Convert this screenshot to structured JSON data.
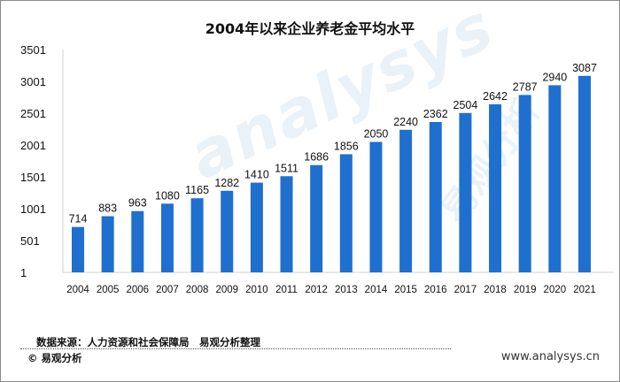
{
  "chart_data": {
    "type": "bar",
    "title": "2004年以来企业养老金平均水平",
    "categories": [
      "2004",
      "2005",
      "2006",
      "2007",
      "2008",
      "2009",
      "2010",
      "2011",
      "2012",
      "2013",
      "2014",
      "2015",
      "2016",
      "2017",
      "2018",
      "2019",
      "2020",
      "2021"
    ],
    "values": [
      714,
      883,
      963,
      1080,
      1165,
      1282,
      1410,
      1511,
      1686,
      1856,
      2050,
      2240,
      2362,
      2504,
      2642,
      2787,
      2940,
      3087
    ],
    "yticks": [
      "1",
      "501",
      "1001",
      "1501",
      "2001",
      "2501",
      "3001",
      "3501"
    ],
    "ylim": [
      1,
      3501
    ],
    "grid": false,
    "bar_color": "#1f6fcf"
  },
  "footer": {
    "source": "数据来源：人力资源和社会保障局　易观分析整理",
    "copyright": "© 易观分析",
    "website": "www.analysys.cn"
  },
  "watermark": {
    "text": "analysys",
    "text_cn": "易观分析"
  }
}
